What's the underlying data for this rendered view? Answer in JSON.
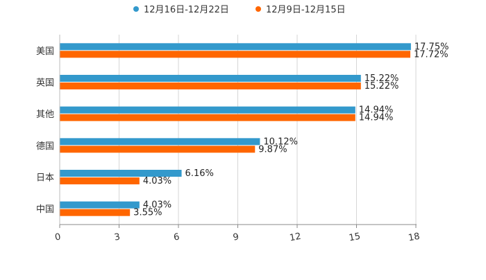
{
  "chart_data": {
    "type": "bar",
    "orientation": "horizontal",
    "title": "",
    "xlabel": "",
    "ylabel": "",
    "xlim": [
      0,
      18
    ],
    "x_ticks": [
      0,
      3,
      6,
      9,
      12,
      15,
      18
    ],
    "grid": true,
    "legend_position": "top-center",
    "categories": [
      "美国",
      "英国",
      "其他",
      "德国",
      "日本",
      "中国"
    ],
    "series": [
      {
        "name": "12月16日-12月22日",
        "color": "#3399cc",
        "values": [
          17.75,
          15.22,
          14.94,
          10.12,
          6.16,
          4.03
        ],
        "labels": [
          "17.75%",
          "15.22%",
          "14.94%",
          "10.12%",
          "6.16%",
          "4.03%"
        ]
      },
      {
        "name": "12月9日-12月15日",
        "color": "#ff6600",
        "values": [
          17.72,
          15.22,
          14.94,
          9.87,
          4.03,
          3.55
        ],
        "labels": [
          "17.72%",
          "15.22%",
          "14.94%",
          "9.87%",
          "4.03%",
          "3.55%"
        ]
      }
    ]
  }
}
